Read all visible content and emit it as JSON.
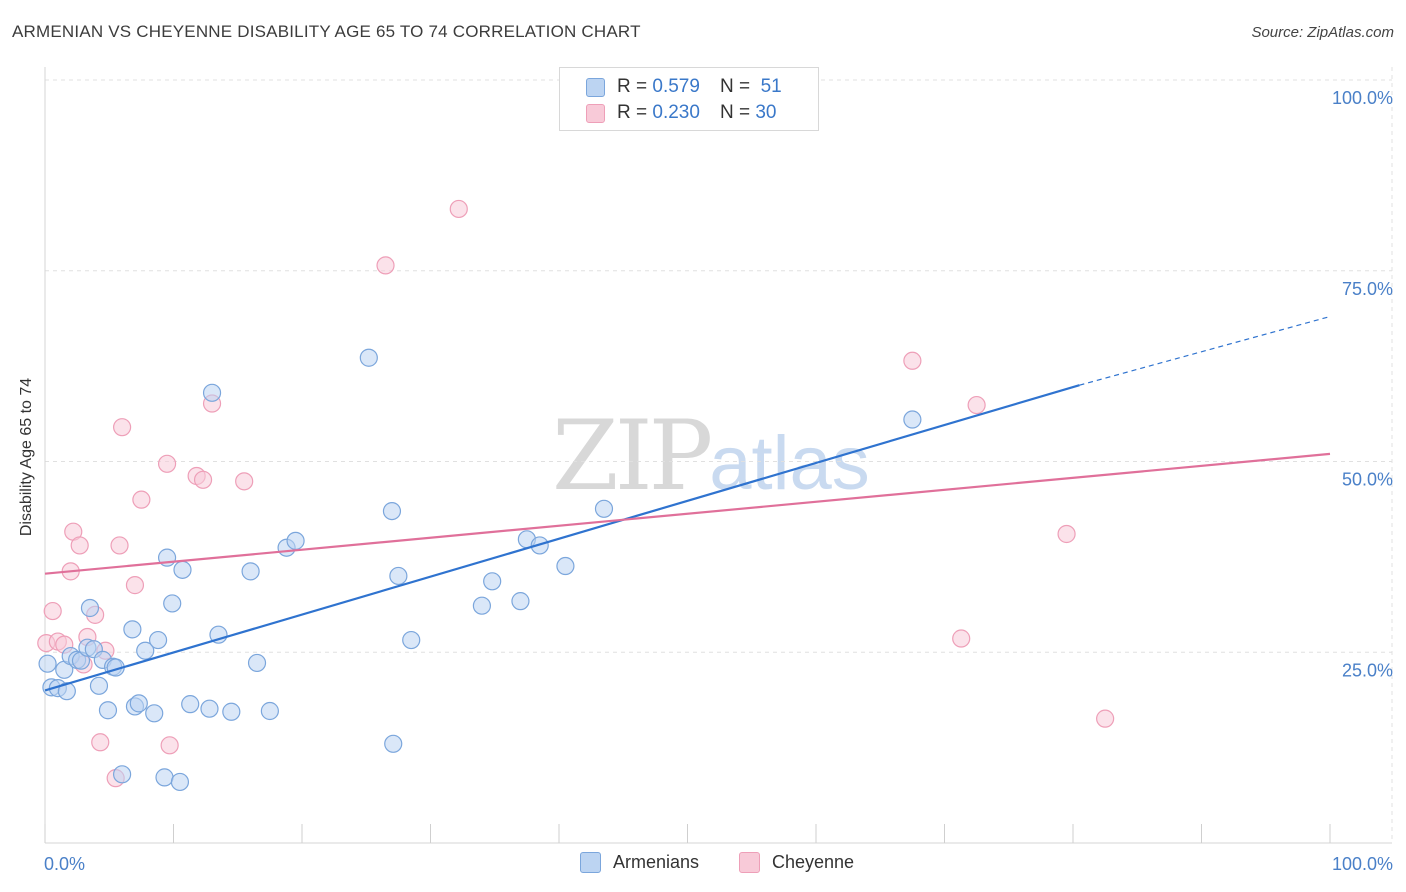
{
  "title": "ARMENIAN VS CHEYENNE DISABILITY AGE 65 TO 74 CORRELATION CHART",
  "source": "Source: ZipAtlas.com",
  "watermark": {
    "zip": "ZIP",
    "atlas": "atlas"
  },
  "legend": {
    "rows": [
      {
        "r_label": "R =",
        "r_value": "0.579",
        "n_label": "N =",
        "n_value": "51"
      },
      {
        "r_label": "R =",
        "r_value": "0.230",
        "n_label": "N =",
        "n_value": "30"
      }
    ]
  },
  "colors": {
    "armenians_fill": "#bcd4f2",
    "armenians_stroke": "#7ba6dc",
    "armenians_line": "#2f73cf",
    "cheyenne_fill": "#f8cad8",
    "cheyenne_stroke": "#ee9fb8",
    "cheyenne_line": "#e0709a",
    "grid": "#e0e0e0",
    "tick_text": "#4a80c8"
  },
  "chart_data": {
    "type": "scatter",
    "title": "ARMENIAN VS CHEYENNE DISABILITY AGE 65 TO 74 CORRELATION CHART",
    "xlabel": "",
    "ylabel": "Disability Age 65 to 74",
    "xlim": [
      0,
      100
    ],
    "ylim": [
      0,
      100
    ],
    "x_tick_labels": [
      "0.0%",
      "100.0%"
    ],
    "y_ticks": [
      25,
      50,
      75,
      100
    ],
    "y_tick_labels": [
      "25.0%",
      "50.0%",
      "75.0%",
      "100.0%"
    ],
    "grid": true,
    "legend_position": "top-center",
    "series": [
      {
        "name": "Armenians",
        "r": 0.579,
        "n": 51,
        "trend": {
          "x0": 0,
          "y0": 20.0,
          "x1": 80.5,
          "y1": 60.0,
          "dash_to_x": 100,
          "dash_to_y": 69.0
        },
        "points": [
          [
            0.2,
            23.5
          ],
          [
            0.5,
            20.4
          ],
          [
            1.0,
            20.3
          ],
          [
            1.5,
            22.7
          ],
          [
            1.7,
            19.9
          ],
          [
            2.0,
            24.5
          ],
          [
            2.5,
            24.0
          ],
          [
            2.8,
            23.9
          ],
          [
            3.3,
            25.6
          ],
          [
            3.5,
            30.8
          ],
          [
            3.8,
            25.4
          ],
          [
            4.2,
            20.6
          ],
          [
            4.5,
            24.0
          ],
          [
            4.9,
            17.4
          ],
          [
            5.3,
            23.1
          ],
          [
            5.5,
            23.0
          ],
          [
            6.0,
            9.0
          ],
          [
            6.8,
            28.0
          ],
          [
            7.0,
            17.9
          ],
          [
            7.3,
            18.3
          ],
          [
            7.8,
            25.2
          ],
          [
            8.5,
            17.0
          ],
          [
            8.8,
            26.6
          ],
          [
            9.3,
            8.6
          ],
          [
            9.5,
            37.4
          ],
          [
            9.9,
            31.4
          ],
          [
            10.5,
            8.0
          ],
          [
            10.7,
            35.8
          ],
          [
            11.3,
            18.2
          ],
          [
            12.8,
            17.6
          ],
          [
            13.0,
            59.0
          ],
          [
            13.5,
            27.3
          ],
          [
            14.5,
            17.2
          ],
          [
            16.0,
            35.6
          ],
          [
            16.5,
            23.6
          ],
          [
            17.5,
            17.3
          ],
          [
            18.8,
            38.7
          ],
          [
            19.5,
            39.6
          ],
          [
            25.2,
            63.6
          ],
          [
            27.0,
            43.5
          ],
          [
            27.1,
            13.0
          ],
          [
            27.5,
            35.0
          ],
          [
            28.5,
            26.6
          ],
          [
            34.0,
            31.1
          ],
          [
            34.8,
            34.3
          ],
          [
            37.0,
            31.7
          ],
          [
            37.5,
            39.8
          ],
          [
            38.5,
            39.0
          ],
          [
            40.5,
            36.3
          ],
          [
            43.5,
            43.8
          ],
          [
            67.5,
            55.5
          ]
        ]
      },
      {
        "name": "Cheyenne",
        "r": 0.23,
        "n": 30,
        "trend": {
          "x0": 0,
          "y0": 35.3,
          "x1": 100,
          "y1": 51.0
        },
        "points": [
          [
            0.1,
            26.2
          ],
          [
            0.6,
            30.4
          ],
          [
            1.0,
            26.4
          ],
          [
            1.5,
            26.0
          ],
          [
            2.0,
            35.6
          ],
          [
            2.2,
            40.8
          ],
          [
            2.7,
            39.0
          ],
          [
            3.0,
            23.4
          ],
          [
            3.3,
            27.0
          ],
          [
            3.9,
            29.9
          ],
          [
            4.3,
            13.2
          ],
          [
            4.7,
            25.2
          ],
          [
            5.5,
            8.5
          ],
          [
            5.8,
            39.0
          ],
          [
            6.0,
            54.5
          ],
          [
            7.0,
            33.8
          ],
          [
            7.5,
            45.0
          ],
          [
            9.5,
            49.7
          ],
          [
            9.7,
            12.8
          ],
          [
            11.8,
            48.1
          ],
          [
            12.3,
            47.6
          ],
          [
            13.0,
            57.6
          ],
          [
            15.5,
            47.4
          ],
          [
            26.5,
            75.7
          ],
          [
            32.2,
            83.1
          ],
          [
            67.5,
            63.2
          ],
          [
            71.3,
            26.8
          ],
          [
            72.5,
            57.4
          ],
          [
            79.5,
            40.5
          ],
          [
            82.5,
            16.3
          ]
        ]
      }
    ]
  }
}
